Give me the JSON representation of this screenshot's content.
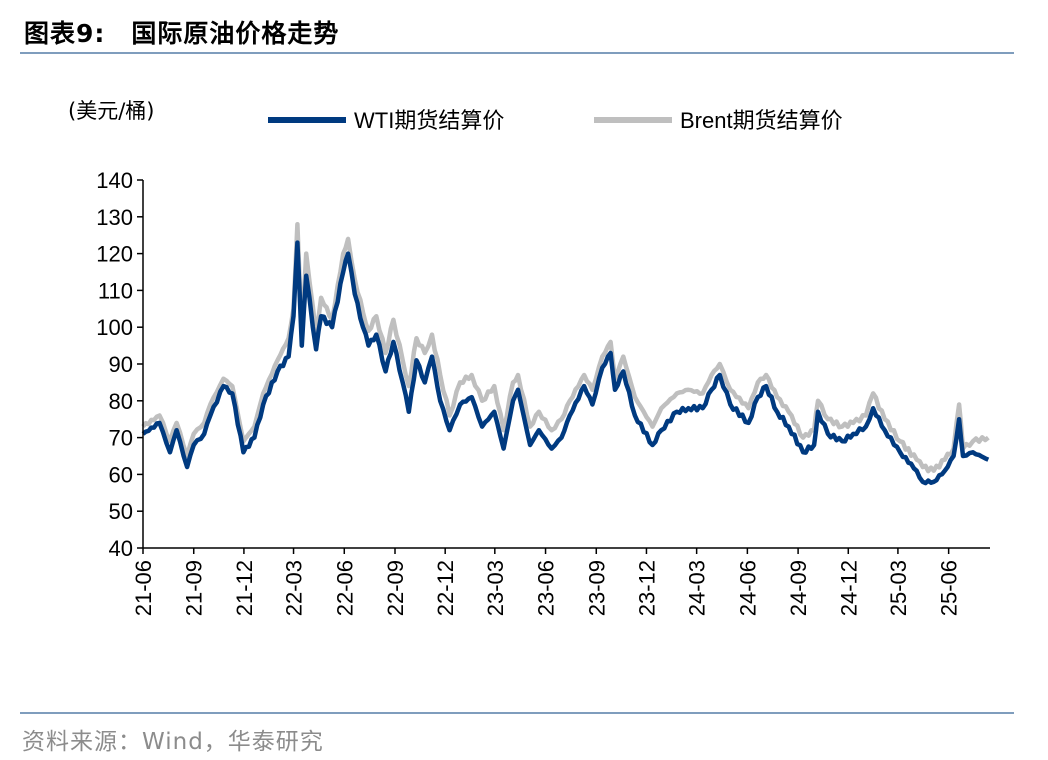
{
  "header": {
    "figure_no": "图表9:",
    "title": "国际原油价格走势"
  },
  "footer": {
    "source": "资料来源：Wind，华泰研究"
  },
  "colors": {
    "wti": "#003a80",
    "brent": "#bfbfbf",
    "rule": "#7f9dbd"
  },
  "chart_data": {
    "type": "line",
    "title": "国际原油价格走势",
    "unit_label": "(美元/桶)",
    "ylim": [
      40,
      140
    ],
    "yticks": [
      40,
      50,
      60,
      70,
      80,
      90,
      100,
      110,
      120,
      130,
      140
    ],
    "xlim": [
      "2021-06-01",
      "2025-08-15"
    ],
    "xticks": [
      "21-06",
      "21-09",
      "21-12",
      "22-03",
      "22-06",
      "22-09",
      "22-12",
      "23-03",
      "23-06",
      "23-09",
      "23-12",
      "24-03",
      "24-06",
      "24-09",
      "24-12",
      "25-03",
      "25-06"
    ],
    "legend_position": "top",
    "grid": false,
    "series": [
      {
        "name": "WTI期货结算价",
        "color": "#003a80",
        "points": [
          [
            "2021-06-01",
            71
          ],
          [
            "2021-07-01",
            74
          ],
          [
            "2021-07-20",
            66
          ],
          [
            "2021-08-01",
            72
          ],
          [
            "2021-08-20",
            62
          ],
          [
            "2021-09-01",
            68
          ],
          [
            "2021-09-20",
            71
          ],
          [
            "2021-10-01",
            76
          ],
          [
            "2021-10-25",
            84
          ],
          [
            "2021-11-10",
            82
          ],
          [
            "2021-11-30",
            66
          ],
          [
            "2021-12-20",
            70
          ],
          [
            "2022-01-05",
            79
          ],
          [
            "2022-01-31",
            88
          ],
          [
            "2022-02-20",
            92
          ],
          [
            "2022-03-01",
            103
          ],
          [
            "2022-03-08",
            123
          ],
          [
            "2022-03-16",
            95
          ],
          [
            "2022-03-24",
            114
          ],
          [
            "2022-04-11",
            94
          ],
          [
            "2022-04-20",
            103
          ],
          [
            "2022-05-10",
            100
          ],
          [
            "2022-05-30",
            115
          ],
          [
            "2022-06-08",
            120
          ],
          [
            "2022-06-20",
            109
          ],
          [
            "2022-07-05",
            100
          ],
          [
            "2022-07-15",
            95
          ],
          [
            "2022-07-29",
            98
          ],
          [
            "2022-08-15",
            88
          ],
          [
            "2022-08-29",
            96
          ],
          [
            "2022-09-15",
            85
          ],
          [
            "2022-09-26",
            77
          ],
          [
            "2022-10-10",
            91
          ],
          [
            "2022-10-25",
            85
          ],
          [
            "2022-11-07",
            92
          ],
          [
            "2022-11-22",
            80
          ],
          [
            "2022-12-09",
            72
          ],
          [
            "2022-12-28",
            79
          ],
          [
            "2023-01-18",
            81
          ],
          [
            "2023-02-06",
            73
          ],
          [
            "2023-02-28",
            77
          ],
          [
            "2023-03-17",
            67
          ],
          [
            "2023-04-03",
            80
          ],
          [
            "2023-04-12",
            83
          ],
          [
            "2023-05-04",
            68
          ],
          [
            "2023-05-20",
            72
          ],
          [
            "2023-06-12",
            67
          ],
          [
            "2023-06-30",
            70
          ],
          [
            "2023-07-15",
            76
          ],
          [
            "2023-08-10",
            84
          ],
          [
            "2023-08-25",
            79
          ],
          [
            "2023-09-12",
            89
          ],
          [
            "2023-09-27",
            93
          ],
          [
            "2023-10-05",
            83
          ],
          [
            "2023-10-20",
            88
          ],
          [
            "2023-11-10",
            76
          ],
          [
            "2023-12-12",
            68
          ],
          [
            "2023-12-28",
            72
          ],
          [
            "2024-01-25",
            77
          ],
          [
            "2024-02-15",
            78
          ],
          [
            "2024-03-12",
            78
          ],
          [
            "2024-03-28",
            83
          ],
          [
            "2024-04-12",
            87
          ],
          [
            "2024-05-01",
            79
          ],
          [
            "2024-06-03",
            74
          ],
          [
            "2024-06-20",
            81
          ],
          [
            "2024-07-05",
            84
          ],
          [
            "2024-07-25",
            77
          ],
          [
            "2024-08-15",
            73
          ],
          [
            "2024-09-10",
            66
          ],
          [
            "2024-09-30",
            68
          ],
          [
            "2024-10-07",
            77
          ],
          [
            "2024-10-25",
            71
          ],
          [
            "2024-11-20",
            69
          ],
          [
            "2024-12-10",
            71
          ],
          [
            "2025-01-02",
            73
          ],
          [
            "2025-01-15",
            78
          ],
          [
            "2025-02-05",
            72
          ],
          [
            "2025-03-05",
            66
          ],
          [
            "2025-04-04",
            61
          ],
          [
            "2025-04-15",
            58
          ],
          [
            "2025-05-05",
            58
          ],
          [
            "2025-05-25",
            61
          ],
          [
            "2025-06-10",
            65
          ],
          [
            "2025-06-20",
            75
          ],
          [
            "2025-06-27",
            65
          ],
          [
            "2025-07-15",
            66
          ],
          [
            "2025-08-12",
            64
          ]
        ]
      },
      {
        "name": "Brent期货结算价",
        "color": "#bfbfbf",
        "points": [
          [
            "2021-06-01",
            73
          ],
          [
            "2021-07-01",
            76
          ],
          [
            "2021-07-20",
            69
          ],
          [
            "2021-08-01",
            74
          ],
          [
            "2021-08-20",
            65
          ],
          [
            "2021-09-01",
            71
          ],
          [
            "2021-09-20",
            74
          ],
          [
            "2021-10-01",
            79
          ],
          [
            "2021-10-25",
            86
          ],
          [
            "2021-11-10",
            84
          ],
          [
            "2021-11-30",
            69
          ],
          [
            "2021-12-20",
            73
          ],
          [
            "2022-01-05",
            82
          ],
          [
            "2022-01-31",
            91
          ],
          [
            "2022-02-20",
            97
          ],
          [
            "2022-03-01",
            105
          ],
          [
            "2022-03-08",
            128
          ],
          [
            "2022-03-16",
            98
          ],
          [
            "2022-03-24",
            120
          ],
          [
            "2022-04-11",
            98
          ],
          [
            "2022-04-20",
            108
          ],
          [
            "2022-05-10",
            102
          ],
          [
            "2022-05-30",
            120
          ],
          [
            "2022-06-08",
            124
          ],
          [
            "2022-06-20",
            113
          ],
          [
            "2022-07-05",
            104
          ],
          [
            "2022-07-15",
            99
          ],
          [
            "2022-07-29",
            103
          ],
          [
            "2022-08-15",
            93
          ],
          [
            "2022-08-29",
            102
          ],
          [
            "2022-09-15",
            91
          ],
          [
            "2022-09-26",
            84
          ],
          [
            "2022-10-10",
            97
          ],
          [
            "2022-10-25",
            93
          ],
          [
            "2022-11-07",
            98
          ],
          [
            "2022-11-22",
            87
          ],
          [
            "2022-12-09",
            76
          ],
          [
            "2022-12-28",
            85
          ],
          [
            "2023-01-18",
            87
          ],
          [
            "2023-02-06",
            80
          ],
          [
            "2023-02-28",
            84
          ],
          [
            "2023-03-17",
            72
          ],
          [
            "2023-04-03",
            85
          ],
          [
            "2023-04-12",
            87
          ],
          [
            "2023-05-04",
            73
          ],
          [
            "2023-05-20",
            77
          ],
          [
            "2023-06-12",
            72
          ],
          [
            "2023-06-30",
            75
          ],
          [
            "2023-07-15",
            80
          ],
          [
            "2023-08-10",
            87
          ],
          [
            "2023-08-25",
            83
          ],
          [
            "2023-09-12",
            92
          ],
          [
            "2023-09-27",
            96
          ],
          [
            "2023-10-05",
            86
          ],
          [
            "2023-10-20",
            92
          ],
          [
            "2023-11-10",
            81
          ],
          [
            "2023-12-12",
            73
          ],
          [
            "2023-12-28",
            78
          ],
          [
            "2024-01-25",
            82
          ],
          [
            "2024-02-15",
            83
          ],
          [
            "2024-03-12",
            82
          ],
          [
            "2024-03-28",
            87
          ],
          [
            "2024-04-12",
            90
          ],
          [
            "2024-05-01",
            83
          ],
          [
            "2024-06-03",
            78
          ],
          [
            "2024-06-20",
            85
          ],
          [
            "2024-07-05",
            87
          ],
          [
            "2024-07-25",
            81
          ],
          [
            "2024-08-15",
            77
          ],
          [
            "2024-09-10",
            70
          ],
          [
            "2024-09-30",
            72
          ],
          [
            "2024-10-07",
            80
          ],
          [
            "2024-10-25",
            75
          ],
          [
            "2024-11-20",
            73
          ],
          [
            "2024-12-10",
            74
          ],
          [
            "2025-01-02",
            76
          ],
          [
            "2025-01-15",
            82
          ],
          [
            "2025-02-05",
            75
          ],
          [
            "2025-03-05",
            69
          ],
          [
            "2025-04-04",
            64
          ],
          [
            "2025-04-15",
            62
          ],
          [
            "2025-05-05",
            61
          ],
          [
            "2025-05-25",
            64
          ],
          [
            "2025-06-10",
            67
          ],
          [
            "2025-06-20",
            79
          ],
          [
            "2025-06-27",
            67
          ],
          [
            "2025-07-15",
            69
          ],
          [
            "2025-08-12",
            70
          ]
        ]
      }
    ]
  }
}
